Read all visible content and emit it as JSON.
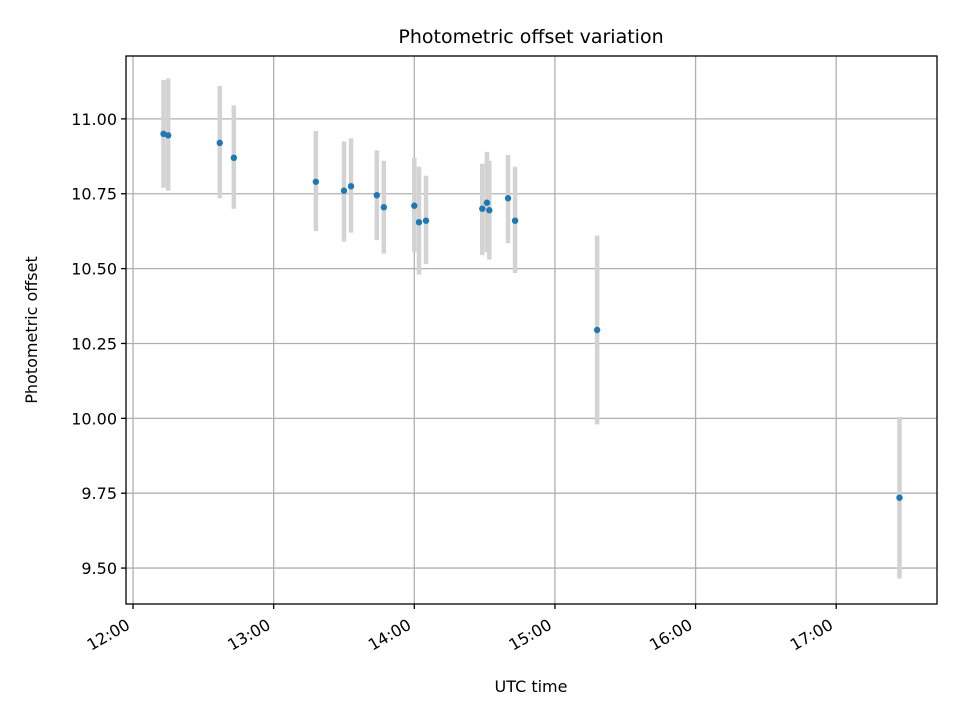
{
  "chart_data": {
    "type": "scatter",
    "title": "Photometric offset variation",
    "xlabel": "UTC time",
    "ylabel": "Photometric offset",
    "x_axis": {
      "kind": "time",
      "range": [
        "11:57",
        "17:43"
      ],
      "ticks": [
        "12:00",
        "13:00",
        "14:00",
        "15:00",
        "16:00",
        "17:00"
      ]
    },
    "y_axis": {
      "range": [
        9.38,
        11.21
      ],
      "ticks": [
        9.5,
        9.75,
        10.0,
        10.25,
        10.5,
        10.75,
        11.0
      ],
      "tick_labels": [
        "9.50",
        "9.75",
        "10.00",
        "10.25",
        "10.50",
        "10.75",
        "11.00"
      ]
    },
    "grid": true,
    "point_color": "#1f77b4",
    "errorbar_color": "#d3d3d3",
    "points": [
      {
        "x": "12:13",
        "y": 10.95,
        "err_low": 10.77,
        "err_high": 11.13
      },
      {
        "x": "12:15",
        "y": 10.945,
        "err_low": 10.76,
        "err_high": 11.135
      },
      {
        "x": "12:37",
        "y": 10.92,
        "err_low": 10.735,
        "err_high": 11.11
      },
      {
        "x": "12:43",
        "y": 10.87,
        "err_low": 10.7,
        "err_high": 11.045
      },
      {
        "x": "13:18",
        "y": 10.79,
        "err_low": 10.625,
        "err_high": 10.96
      },
      {
        "x": "13:30",
        "y": 10.76,
        "err_low": 10.59,
        "err_high": 10.925
      },
      {
        "x": "13:33",
        "y": 10.775,
        "err_low": 10.62,
        "err_high": 10.935
      },
      {
        "x": "13:44",
        "y": 10.745,
        "err_low": 10.595,
        "err_high": 10.895
      },
      {
        "x": "13:47",
        "y": 10.705,
        "err_low": 10.55,
        "err_high": 10.86
      },
      {
        "x": "14:00",
        "y": 10.71,
        "err_low": 10.555,
        "err_high": 10.87
      },
      {
        "x": "14:02",
        "y": 10.655,
        "err_low": 10.48,
        "err_high": 10.84
      },
      {
        "x": "14:05",
        "y": 10.66,
        "err_low": 10.515,
        "err_high": 10.81
      },
      {
        "x": "14:29",
        "y": 10.7,
        "err_low": 10.545,
        "err_high": 10.85
      },
      {
        "x": "14:31",
        "y": 10.72,
        "err_low": 10.555,
        "err_high": 10.89
      },
      {
        "x": "14:32",
        "y": 10.695,
        "err_low": 10.53,
        "err_high": 10.86
      },
      {
        "x": "14:40",
        "y": 10.735,
        "err_low": 10.585,
        "err_high": 10.88
      },
      {
        "x": "14:43",
        "y": 10.66,
        "err_low": 10.485,
        "err_high": 10.84
      },
      {
        "x": "15:18",
        "y": 10.295,
        "err_low": 9.98,
        "err_high": 10.61
      },
      {
        "x": "17:27",
        "y": 9.735,
        "err_low": 9.465,
        "err_high": 10.005
      }
    ]
  }
}
